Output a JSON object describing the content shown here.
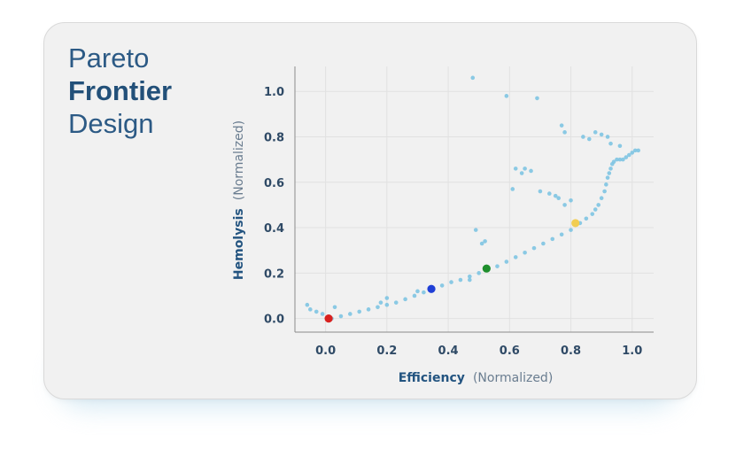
{
  "card": {
    "title_line1": "Pareto",
    "title_line2": "Frontier",
    "title_line3": "Design"
  },
  "chart_data": {
    "type": "scatter",
    "title": "Pareto Frontier Design",
    "xlabel": "Efficiency",
    "xlabel_suffix": "(Normalized)",
    "ylabel": "Hemolysis",
    "ylabel_suffix": "(Normalized)",
    "xlim": [
      -0.1,
      1.07
    ],
    "ylim": [
      -0.06,
      1.11
    ],
    "xticks": [
      "0.0",
      "0.2",
      "0.4",
      "0.6",
      "0.8",
      "1.0"
    ],
    "yticks": [
      "0.0",
      "0.2",
      "0.4",
      "0.6",
      "0.8",
      "1.0"
    ],
    "grid": true,
    "point_color": "#7ec4e2",
    "series": [
      {
        "name": "frontier",
        "color": "#7ec4e2",
        "x": [
          0.02,
          0.05,
          0.08,
          0.11,
          0.14,
          0.17,
          0.2,
          0.23,
          0.26,
          0.29,
          0.32,
          0.35,
          0.38,
          0.41,
          0.44,
          0.47,
          0.5,
          0.53,
          0.56,
          0.59,
          0.62,
          0.65,
          0.68,
          0.71,
          0.74,
          0.77,
          0.8,
          0.83,
          0.85,
          0.87,
          0.88,
          0.89,
          0.9,
          0.91,
          0.915,
          0.92,
          0.925,
          0.93,
          0.935,
          0.94,
          0.95,
          0.96,
          0.97,
          0.98,
          0.99,
          1.0,
          1.01,
          1.02
        ],
        "y": [
          0.0,
          0.01,
          0.02,
          0.03,
          0.04,
          0.05,
          0.06,
          0.07,
          0.085,
          0.1,
          0.115,
          0.13,
          0.145,
          0.16,
          0.17,
          0.185,
          0.2,
          0.215,
          0.23,
          0.25,
          0.27,
          0.29,
          0.31,
          0.33,
          0.35,
          0.37,
          0.39,
          0.42,
          0.44,
          0.46,
          0.48,
          0.5,
          0.53,
          0.56,
          0.59,
          0.62,
          0.64,
          0.66,
          0.68,
          0.69,
          0.7,
          0.7,
          0.7,
          0.71,
          0.72,
          0.73,
          0.74,
          0.74
        ]
      },
      {
        "name": "outliers",
        "color": "#7ec4e2",
        "x": [
          -0.06,
          -0.05,
          -0.03,
          -0.01,
          0.03,
          0.48,
          0.59,
          0.69,
          0.77,
          0.78,
          0.84,
          0.86,
          0.88,
          0.92,
          0.62,
          0.64,
          0.65,
          0.67,
          0.61,
          0.7,
          0.73,
          0.75,
          0.76,
          0.78,
          0.8,
          0.49,
          0.52,
          0.51,
          0.2,
          0.18,
          0.3,
          0.47,
          0.9,
          0.93,
          0.96
        ],
        "y": [
          0.06,
          0.04,
          0.03,
          0.02,
          0.05,
          1.06,
          0.98,
          0.97,
          0.85,
          0.82,
          0.8,
          0.79,
          0.82,
          0.8,
          0.66,
          0.64,
          0.66,
          0.65,
          0.57,
          0.56,
          0.55,
          0.54,
          0.53,
          0.5,
          0.52,
          0.39,
          0.34,
          0.33,
          0.09,
          0.07,
          0.12,
          0.17,
          0.81,
          0.77,
          0.76
        ]
      }
    ],
    "highlights": [
      {
        "name": "red",
        "x": 0.01,
        "y": 0.0,
        "color": "#d8211f"
      },
      {
        "name": "blue",
        "x": 0.345,
        "y": 0.13,
        "color": "#1f3fd6"
      },
      {
        "name": "green",
        "x": 0.525,
        "y": 0.22,
        "color": "#1e8e2c"
      },
      {
        "name": "yellow",
        "x": 0.815,
        "y": 0.42,
        "color": "#f2cd52"
      }
    ]
  }
}
